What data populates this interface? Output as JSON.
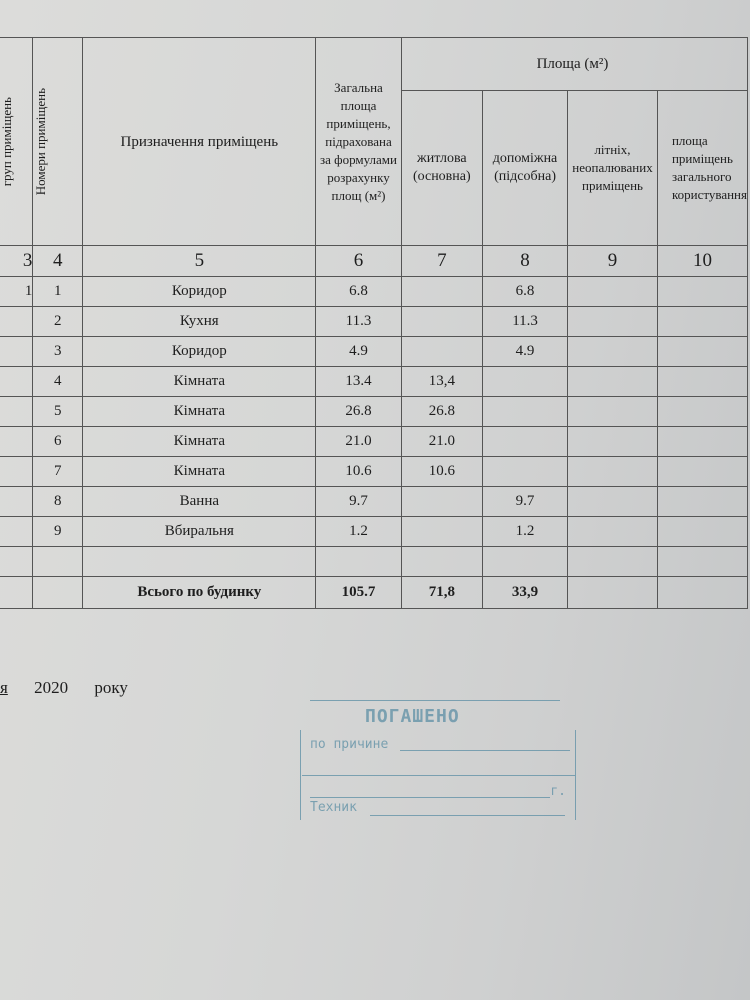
{
  "header": {
    "col3": "груп приміщень",
    "col4": "Номери приміщень",
    "col5": "Призначення приміщень",
    "col6": "Загальна площа приміщень, підрахована за формулами розрахунку площ (м²)",
    "area_group": "Площа (м²)",
    "col7": "житлова (основна)",
    "col8": "допоміжна (підсобна)",
    "col9": "літніх, неопалюваних приміщень",
    "col10": "площа приміщень загального користування"
  },
  "column_numbers": [
    "3",
    "4",
    "5",
    "6",
    "7",
    "8",
    "9",
    "10"
  ],
  "rows": [
    {
      "group": "1",
      "no": "1",
      "name": "Коридор",
      "total": "6.8",
      "living": "",
      "aux": "6.8"
    },
    {
      "group": "",
      "no": "2",
      "name": "Кухня",
      "total": "11.3",
      "living": "",
      "aux": "11.3"
    },
    {
      "group": "",
      "no": "3",
      "name": "Коридор",
      "total": "4.9",
      "living": "",
      "aux": "4.9"
    },
    {
      "group": "",
      "no": "4",
      "name": "Кімната",
      "total": "13.4",
      "living": "13,4",
      "aux": ""
    },
    {
      "group": "",
      "no": "5",
      "name": "Кімната",
      "total": "26.8",
      "living": "26.8",
      "aux": ""
    },
    {
      "group": "",
      "no": "6",
      "name": "Кімната",
      "total": "21.0",
      "living": "21.0",
      "aux": ""
    },
    {
      "group": "",
      "no": "7",
      "name": "Кімната",
      "total": "10.6",
      "living": "10.6",
      "aux": ""
    },
    {
      "group": "",
      "no": "8",
      "name": "Ванна",
      "total": "9.7",
      "living": "",
      "aux": "9.7"
    },
    {
      "group": "",
      "no": "9",
      "name": "Вбиральня",
      "total": "1.2",
      "living": "",
      "aux": "1.2"
    }
  ],
  "totals": {
    "label": "Всього по будинку",
    "total": "105.7",
    "living": "71,8",
    "aux": "33,9"
  },
  "date": {
    "month_fragment": "я",
    "year": "2020",
    "suffix": "року"
  },
  "stamp": {
    "title": "ПОГАШЕНО",
    "reason": "по причине",
    "technician": "Техник",
    "g": "г.",
    "color": "#5d8fa5"
  }
}
